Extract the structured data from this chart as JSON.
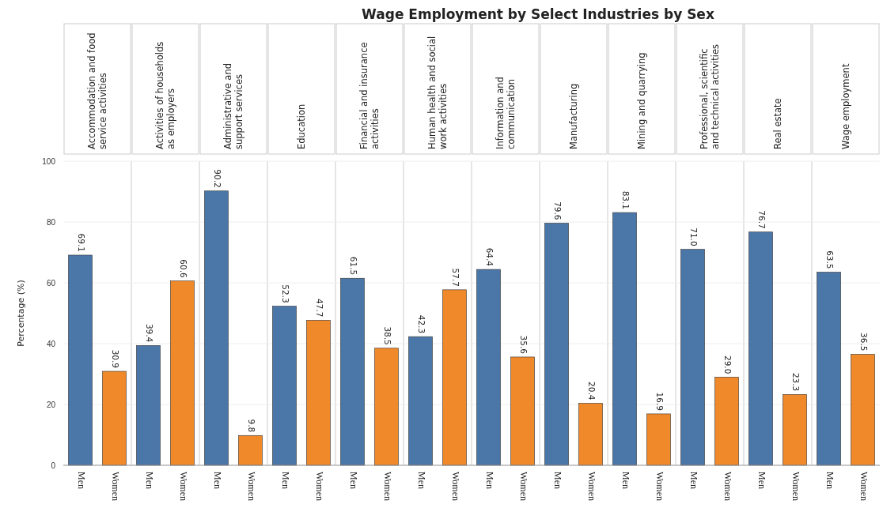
{
  "chart_data": {
    "type": "bar",
    "title": "Wage Employment by Select Industries by Sex",
    "ylabel": "Percentage (%)",
    "categories": [
      "Accommodation and food service activities",
      "Activities of households as employers",
      "Administrative and support services",
      "Education",
      "Financial and insurance activities",
      "Human health and social work activities",
      "Information and communication",
      "Manufacturing",
      "Mining and quarrying",
      "Professional, scientific and technical activities",
      "Real estate",
      "Wage employment"
    ],
    "series": [
      {
        "name": "Men",
        "color": "#4a76a8",
        "values": [
          69.1,
          39.4,
          90.2,
          52.3,
          61.5,
          42.3,
          64.4,
          79.6,
          83.1,
          71.0,
          76.7,
          63.5
        ],
        "value_labels": [
          "69.1",
          "39.4",
          "90.2",
          "52.3",
          "61.5",
          "42.3",
          "64.4",
          "79.6",
          "83.1",
          "71.0",
          "76.7",
          "63.5"
        ]
      },
      {
        "name": "Women",
        "color": "#f0892a",
        "values": [
          30.9,
          60.6,
          9.8,
          47.7,
          38.5,
          57.7,
          35.6,
          20.4,
          16.9,
          29.0,
          23.3,
          36.5
        ],
        "value_labels": [
          "30.9",
          "60.6",
          "9.8",
          "47.7",
          "38.5",
          "57.7",
          "35.6",
          "20.4",
          "16.9",
          "29.0",
          "23.3",
          "36.5"
        ]
      }
    ],
    "ylim": [
      0,
      100
    ],
    "yticks": [
      0,
      20,
      40,
      60,
      80,
      100
    ],
    "grid": "y"
  }
}
